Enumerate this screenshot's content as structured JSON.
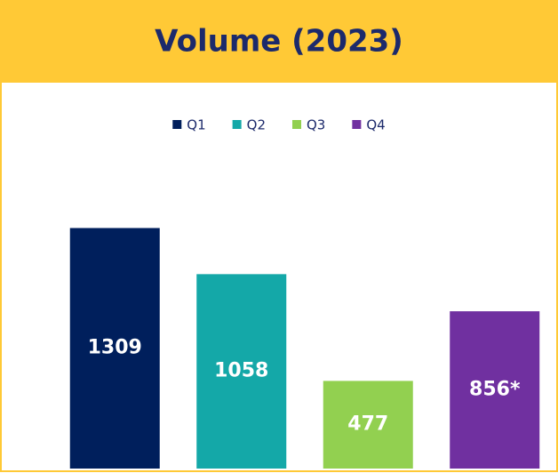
{
  "chart_data": {
    "type": "bar",
    "title": "Volume (2023)",
    "series": [
      {
        "name": "Q1",
        "color": "#001f5c",
        "values": [
          1309
        ]
      },
      {
        "name": "Q2",
        "color": "#14a8a8",
        "values": [
          1058
        ]
      },
      {
        "name": "Q3",
        "color": "#92d050",
        "values": [
          477
        ]
      },
      {
        "name": "Q4",
        "color": "#7030a0",
        "values": [
          856
        ],
        "value_labels": [
          "856*"
        ]
      }
    ],
    "ylim": [
      0,
      1500
    ],
    "legend": "top"
  }
}
